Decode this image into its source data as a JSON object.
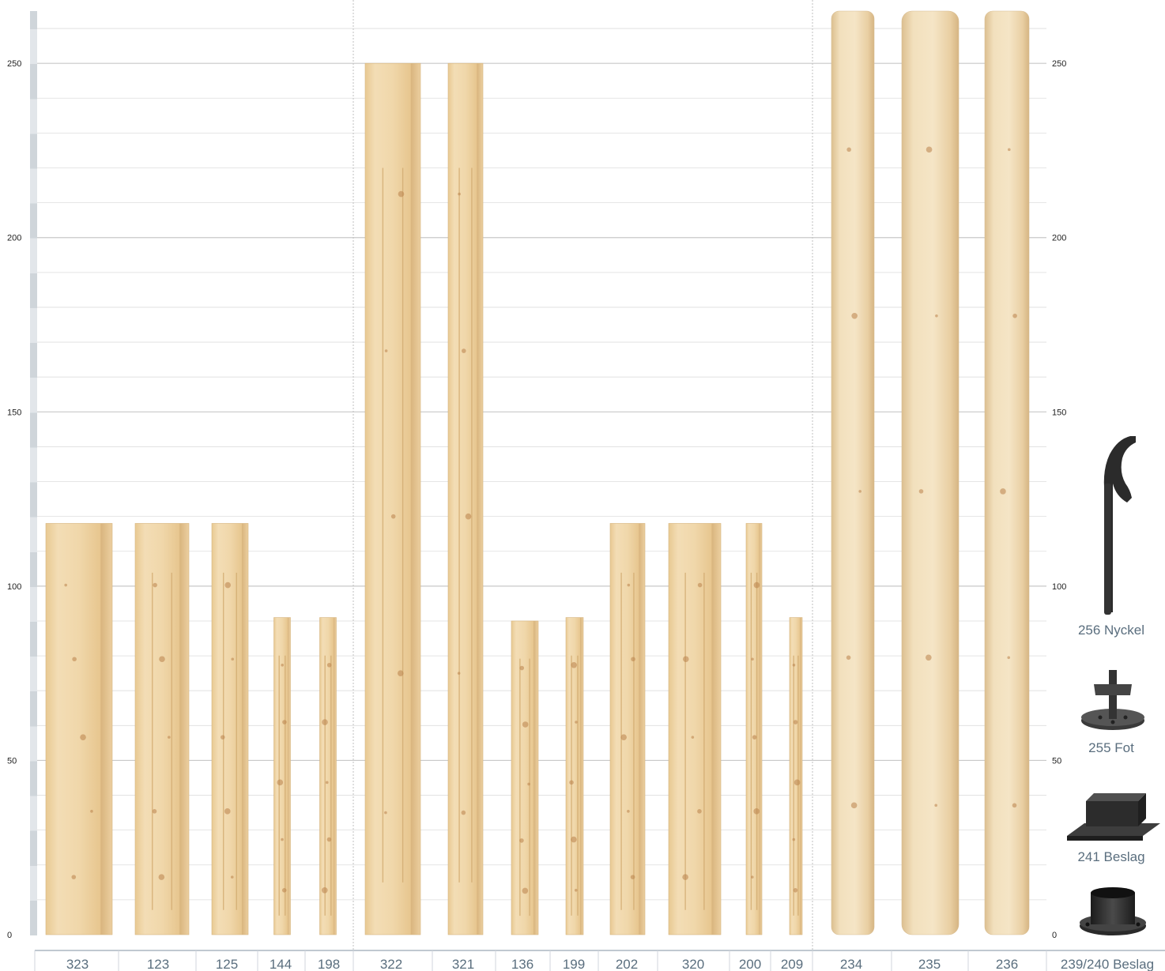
{
  "chart_data": {
    "type": "bar",
    "title": "",
    "xlabel": "",
    "ylabel": "",
    "ylim": [
      0,
      265
    ],
    "yticks": [
      0,
      50,
      100,
      150,
      200,
      250
    ],
    "grid": true,
    "categories": [
      "323",
      "123",
      "125",
      "144",
      "198",
      "322",
      "321",
      "136",
      "199",
      "202",
      "320",
      "200",
      "209",
      "234",
      "235",
      "236"
    ],
    "values": [
      118,
      118,
      118,
      91,
      91,
      250,
      250,
      90,
      91,
      118,
      118,
      118,
      91,
      265,
      265,
      265
    ],
    "shapes": [
      "square",
      "square",
      "square",
      "square",
      "square",
      "square",
      "square",
      "square",
      "square",
      "square",
      "square",
      "square",
      "square",
      "round",
      "round",
      "round"
    ],
    "groups": [
      "A",
      "A",
      "A",
      "A",
      "A",
      "B",
      "B",
      "C",
      "C",
      "C",
      "C",
      "C",
      "C",
      "D",
      "D",
      "D"
    ],
    "accessories": [
      {
        "label": "256 Nyckel",
        "icon": "hook-key-icon"
      },
      {
        "label": "255 Fot",
        "icon": "foot-plate-icon"
      },
      {
        "label": "241 Beslag",
        "icon": "square-bracket-icon"
      },
      {
        "label": "",
        "icon": "round-bracket-icon"
      }
    ],
    "accessory_bottom_label": "239/240 Beslag"
  },
  "colors": {
    "wood_light": "#f1dcb2",
    "wood_mid": "#e6c48c",
    "wood_dark": "#cfa467",
    "knot": "#b37a3c",
    "grid": "#d6d6d6",
    "axis": "#9aa8b4",
    "label": "#5a6e7e",
    "metal": "#2a2a2a"
  }
}
